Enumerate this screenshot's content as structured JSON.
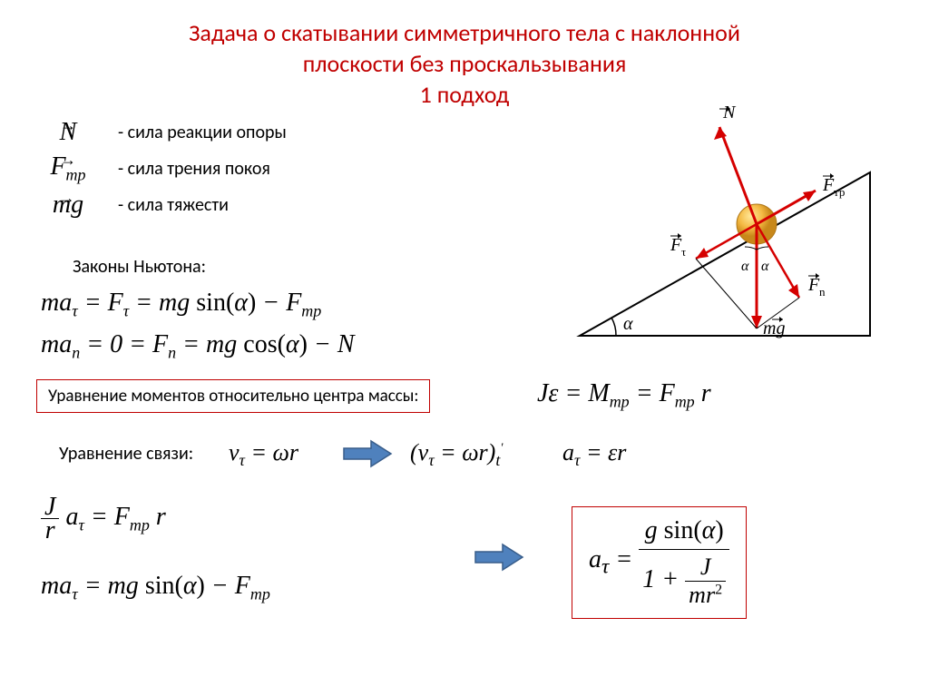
{
  "title_line1": "Задача о скатывании  симметричного тела  с наклонной",
  "title_line2": "плоскости  без проскальзывания",
  "title_line3": "1 подход",
  "forces": {
    "n": {
      "symbol": "N",
      "desc": "- сила реакции опоры"
    },
    "ftr": {
      "symbol_prefix": "F",
      "symbol_sub": "тр",
      "desc": "- сила трения покоя"
    },
    "mg": {
      "symbol": "mg",
      "desc": "- сила тяжести"
    }
  },
  "newton_label": "Законы Ньютона:",
  "eq_newton1": "ma<sub>τ</sub> = F<sub>τ</sub> = mg <span class='roman'>sin(</span>α<span class='roman'>)</span> − F<sub>тр</sub>",
  "eq_newton2": "ma<sub>n</sub> = 0 = F<sub>n</sub> = mg <span class='roman'>cos(</span>α<span class='roman'>)</span> − N",
  "moment_label": "Уравнение моментов относительно центра массы:",
  "eq_moment": "Jε = M<sub>тр</sub> = F<sub>тр</sub> r",
  "constraint_label": "Уравнение связи:",
  "eq_constraint1": "v<sub>τ</sub> = ωr",
  "eq_constraint2": "(v<sub>τ</sub> = ωr)<sub>t</sub><sup style='font-size:14px'>'</sup>",
  "eq_constraint3": "a<sub>τ</sub> = εr",
  "eq_j_num": "J",
  "eq_j_den": "r",
  "eq_j_rest": "a<sub>τ</sub> = F<sub>тр</sub> r",
  "eq_ma2": "ma<sub>τ</sub> = mg <span class='roman'>sin(</span>α<span class='roman'>)</span> − F<sub>тр</sub>",
  "result_lhs": "a<sub>τ</sub> =",
  "result_num": "g <span class='roman'>sin(</span>α<span class='roman'>)</span>",
  "result_den_1": "1 +",
  "result_den_frac_num": "J",
  "result_den_frac_den": "mr<sup style='font-size:16px;font-style:normal'>2</sup>",
  "diagram_labels": {
    "N": "N",
    "Ftr": "F<sub style='font-size:12px'>тр</sub>",
    "Ftau": "F<sub style='font-size:12px'>τ</sub>",
    "Fn": "F<sub style='font-size:12px'>n</sub>",
    "mg": "mg",
    "alpha": "α"
  },
  "colors": {
    "title": "#c00000",
    "box": "#c00000",
    "arrow_fill": "#4f81bd",
    "arrow_stroke": "#385d8a",
    "force_arrow": "#d50000",
    "ball_fill": "#f4b942",
    "ball_shadow": "#d49020"
  }
}
